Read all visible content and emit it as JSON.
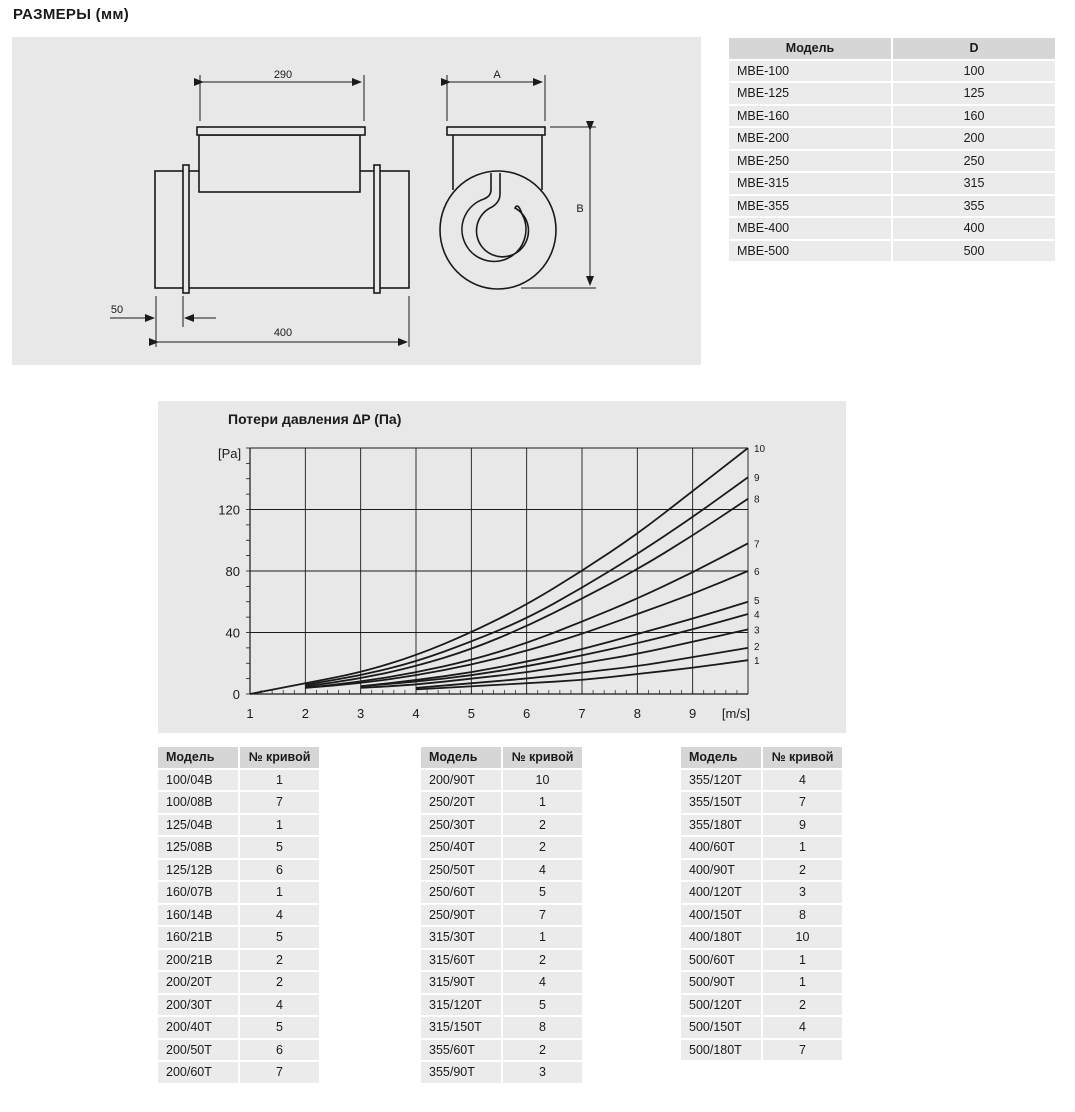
{
  "title": "РАЗМЕРЫ (мм)",
  "drawing": {
    "dim_top": "290",
    "dim_a": "A",
    "dim_b": "B",
    "dim_flange": "50",
    "dim_length": "400"
  },
  "size_table": {
    "headers": [
      "Модель",
      "D"
    ],
    "rows": [
      [
        "MBE-100",
        "100"
      ],
      [
        "MBE-125",
        "125"
      ],
      [
        "MBE-160",
        "160"
      ],
      [
        "MBE-200",
        "200"
      ],
      [
        "MBE-250",
        "250"
      ],
      [
        "MBE-315",
        "315"
      ],
      [
        "MBE-355",
        "355"
      ],
      [
        "MBE-400",
        "400"
      ],
      [
        "MBE-500",
        "500"
      ]
    ]
  },
  "chart_data": {
    "type": "line",
    "title": "Потери давления ∆P  (Па)",
    "xlabel": "[m/s]",
    "ylabel": "[Pa]",
    "xlim": [
      1,
      10
    ],
    "ylim": [
      0,
      160
    ],
    "xticks": [
      "1",
      "2",
      "3",
      "4",
      "5",
      "6",
      "7",
      "8",
      "9"
    ],
    "yticks": [
      "0",
      "40",
      "80",
      "120"
    ],
    "grid": true,
    "line_color": "#1a1a1a",
    "series": [
      {
        "name": "1",
        "x": [
          4,
          5,
          6,
          7,
          8,
          9,
          10
        ],
        "y": [
          3,
          5,
          7,
          9,
          13,
          17,
          22
        ]
      },
      {
        "name": "2",
        "x": [
          4,
          5,
          6,
          7,
          8,
          9,
          10
        ],
        "y": [
          4,
          7,
          10,
          14,
          18,
          24,
          30
        ]
      },
      {
        "name": "3",
        "x": [
          3,
          4,
          5,
          6,
          7,
          8,
          9,
          10
        ],
        "y": [
          4,
          6,
          10,
          14,
          20,
          26,
          34,
          42
        ]
      },
      {
        "name": "4",
        "x": [
          3,
          4,
          5,
          6,
          7,
          8,
          9,
          10
        ],
        "y": [
          5,
          8,
          12,
          18,
          25,
          33,
          42,
          52
        ]
      },
      {
        "name": "5",
        "x": [
          3,
          4,
          5,
          6,
          7,
          8,
          9,
          10
        ],
        "y": [
          5,
          9,
          14,
          21,
          29,
          39,
          49,
          60
        ]
      },
      {
        "name": "6",
        "x": [
          2,
          3,
          4,
          5,
          6,
          7,
          8,
          9,
          10
        ],
        "y": [
          4,
          7,
          12,
          19,
          28,
          39,
          52,
          65,
          80
        ]
      },
      {
        "name": "7",
        "x": [
          2,
          3,
          4,
          5,
          6,
          7,
          8,
          9,
          10
        ],
        "y": [
          4,
          8,
          14,
          22,
          33,
          47,
          62,
          79,
          98
        ]
      },
      {
        "name": "8",
        "x": [
          2,
          3,
          4,
          5,
          6,
          7,
          8,
          9,
          10
        ],
        "y": [
          5,
          10,
          18,
          29,
          44,
          62,
          81,
          103,
          127
        ]
      },
      {
        "name": "9",
        "x": [
          2,
          3,
          4,
          5,
          6,
          7,
          8,
          9,
          10
        ],
        "y": [
          6,
          12,
          21,
          34,
          49,
          69,
          91,
          115,
          141
        ]
      },
      {
        "name": "10",
        "x": [
          1,
          2,
          3,
          4,
          5,
          6,
          7,
          8,
          9,
          10
        ],
        "y": [
          0,
          7,
          14,
          25,
          40,
          58,
          80,
          104,
          132,
          160
        ]
      }
    ]
  },
  "curve_tables": {
    "headers": [
      "Модель",
      "№ кривой"
    ],
    "tables": [
      [
        [
          "100/04B",
          "1"
        ],
        [
          "100/08B",
          "7"
        ],
        [
          "125/04B",
          "1"
        ],
        [
          "125/08B",
          "5"
        ],
        [
          "125/12B",
          "6"
        ],
        [
          "160/07B",
          "1"
        ],
        [
          "160/14B",
          "4"
        ],
        [
          "160/21B",
          "5"
        ],
        [
          "200/21B",
          "2"
        ],
        [
          "200/20T",
          "2"
        ],
        [
          "200/30T",
          "4"
        ],
        [
          "200/40T",
          "5"
        ],
        [
          "200/50T",
          "6"
        ],
        [
          "200/60T",
          "7"
        ]
      ],
      [
        [
          "200/90T",
          "10"
        ],
        [
          "250/20T",
          "1"
        ],
        [
          "250/30T",
          "2"
        ],
        [
          "250/40T",
          "2"
        ],
        [
          "250/50T",
          "4"
        ],
        [
          "250/60T",
          "5"
        ],
        [
          "250/90T",
          "7"
        ],
        [
          "315/30T",
          "1"
        ],
        [
          "315/60T",
          "2"
        ],
        [
          "315/90T",
          "4"
        ],
        [
          "315/120T",
          "5"
        ],
        [
          "315/150T",
          "8"
        ],
        [
          "355/60T",
          "2"
        ],
        [
          "355/90T",
          "3"
        ]
      ],
      [
        [
          "355/120T",
          "4"
        ],
        [
          "355/150T",
          "7"
        ],
        [
          "355/180T",
          "9"
        ],
        [
          "400/60T",
          "1"
        ],
        [
          "400/90T",
          "2"
        ],
        [
          "400/120T",
          "3"
        ],
        [
          "400/150T",
          "8"
        ],
        [
          "400/180T",
          "10"
        ],
        [
          "500/60T",
          "1"
        ],
        [
          "500/90T",
          "1"
        ],
        [
          "500/120T",
          "2"
        ],
        [
          "500/150T",
          "4"
        ],
        [
          "500/180T",
          "7"
        ]
      ]
    ]
  }
}
